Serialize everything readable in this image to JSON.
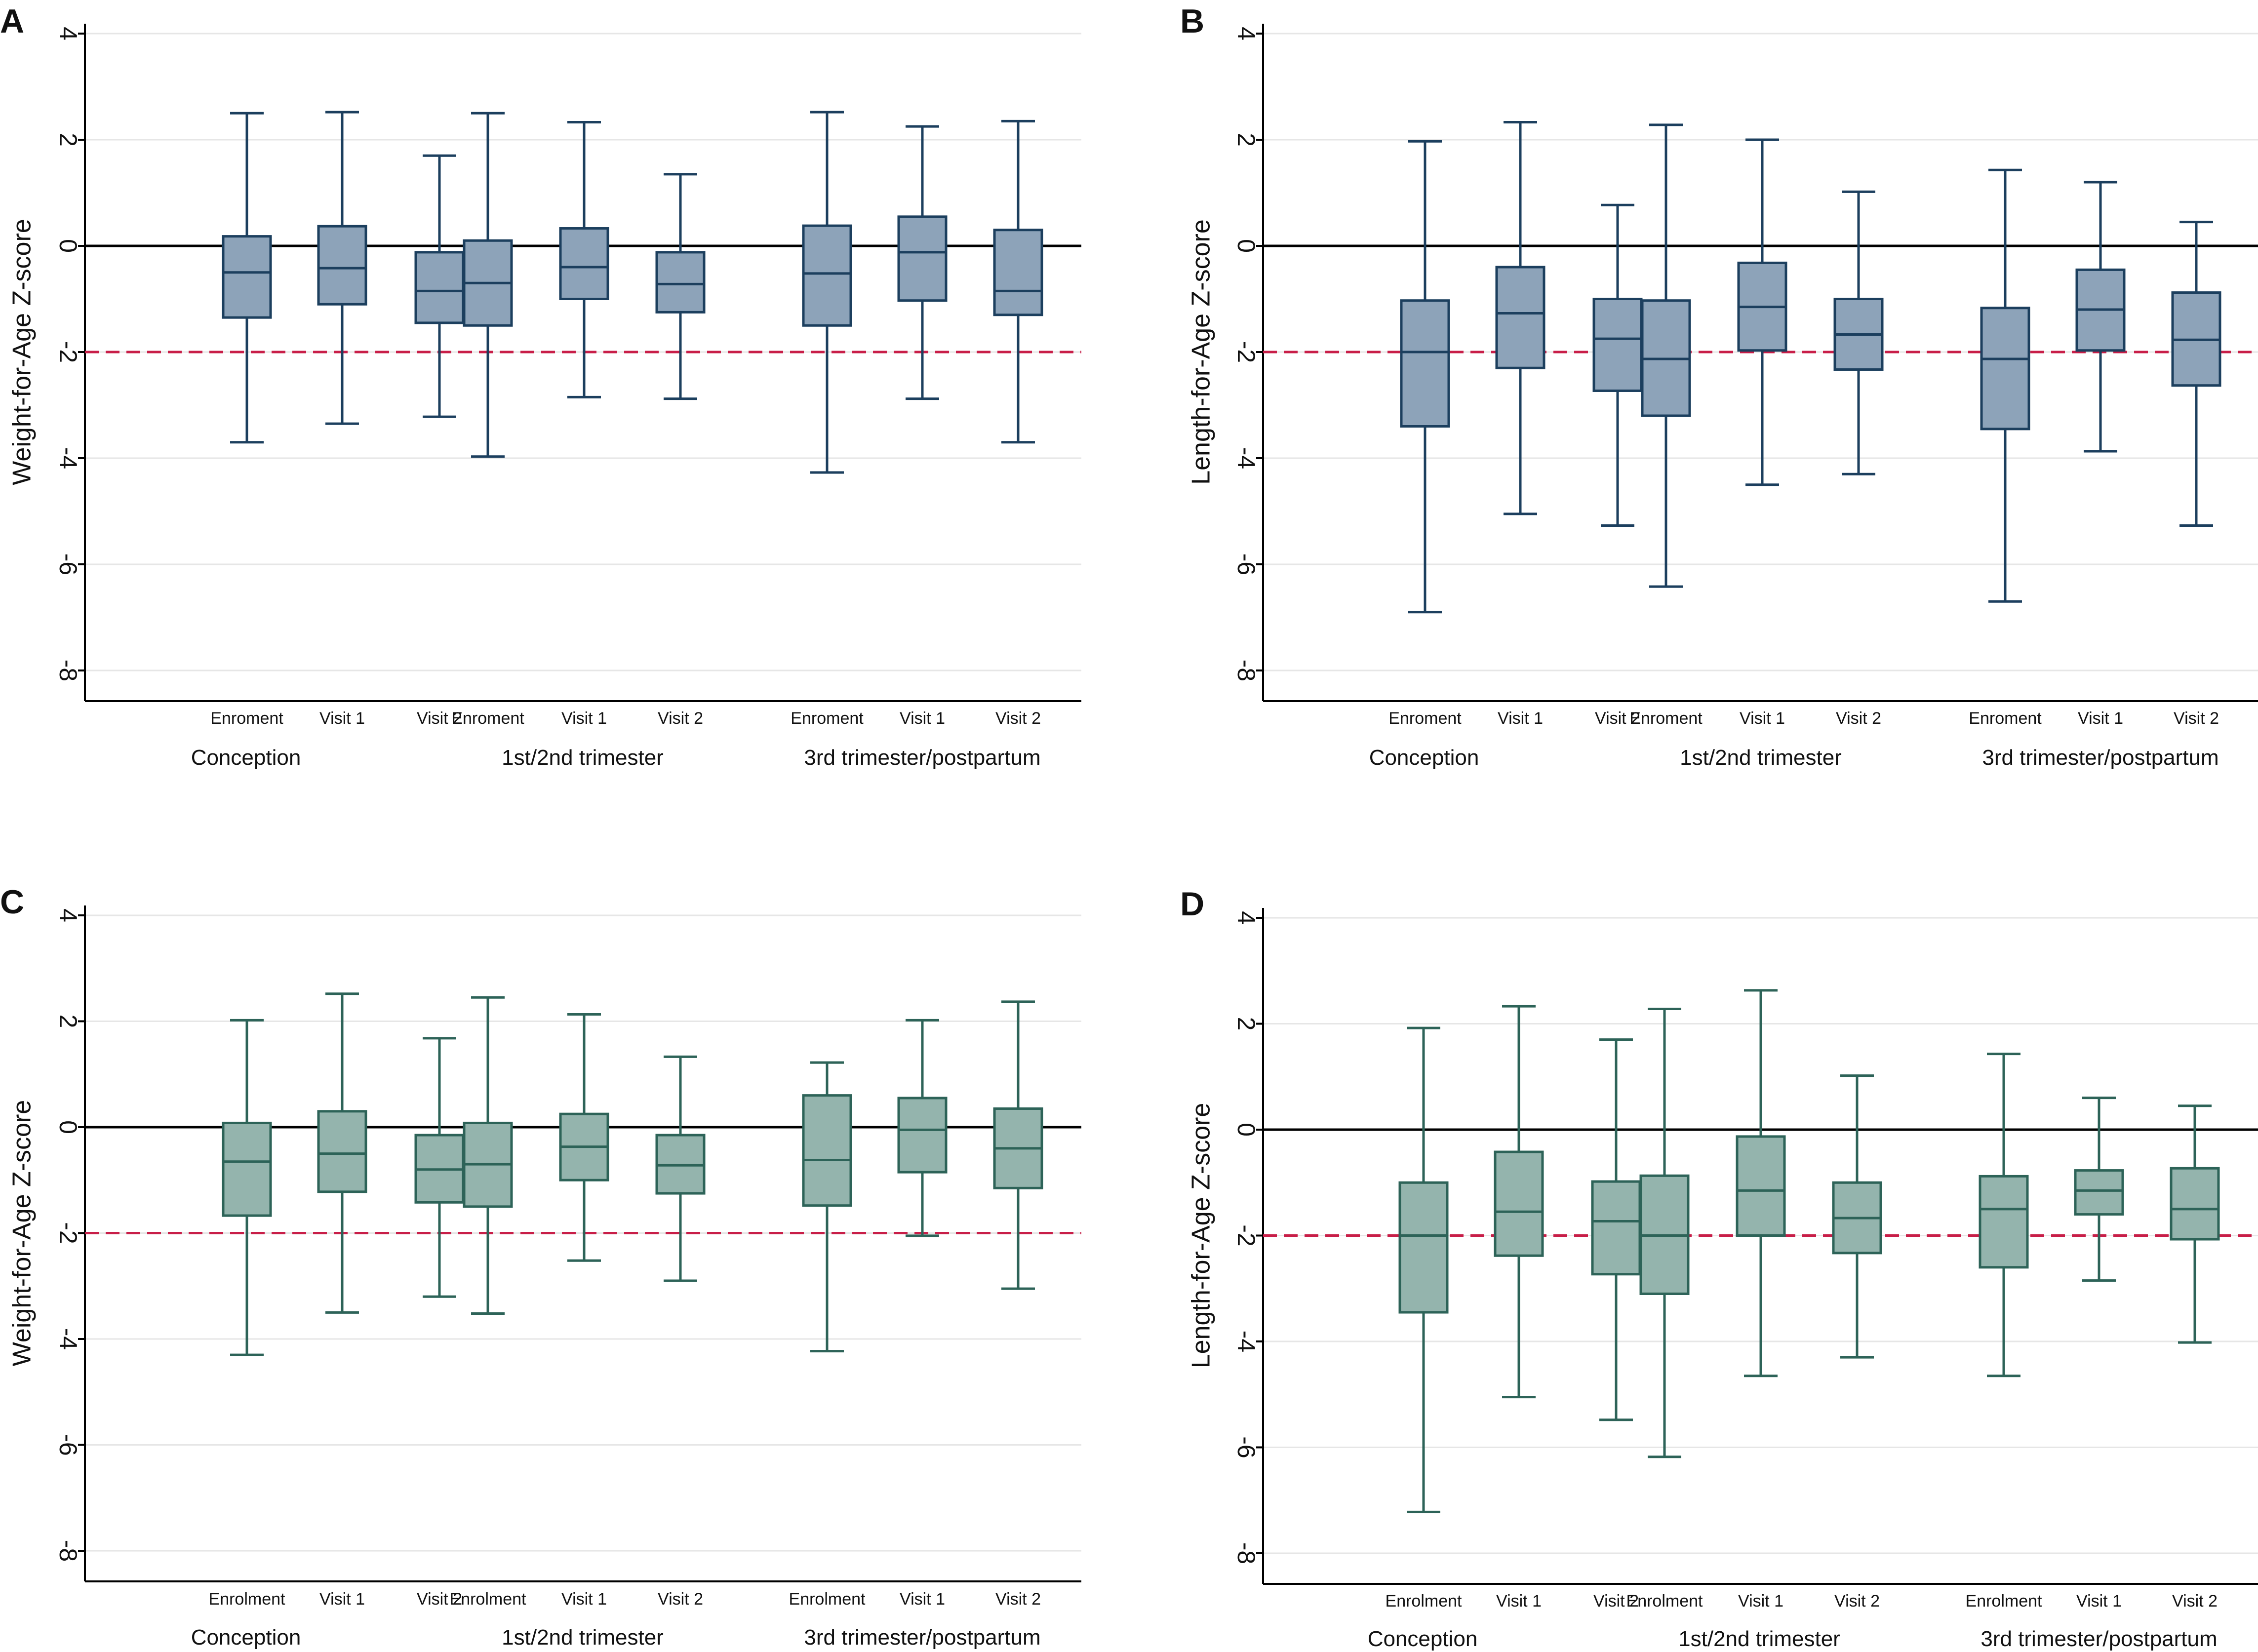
{
  "colors": {
    "blue_fill": "#8da3b9",
    "blue_line": "#1c3f5e",
    "green_fill": "#94b4ad",
    "green_line": "#2d6358",
    "reference_line": "#000000",
    "cutoff_line": "#c81e48",
    "gridline": "#e6e6e6"
  },
  "chart_data": [
    {
      "panel": "A",
      "type": "box",
      "ylabel": "Weight-for-Age Z-score",
      "ylim": [
        -8.5,
        4.5
      ],
      "yticks": [
        "4",
        "2",
        "0",
        "-2",
        "-4",
        "-6",
        "-8"
      ],
      "reference_line": 0,
      "cutoff_line": -2,
      "color_scheme": "blue",
      "groups": [
        {
          "label": "Conception",
          "boxes": [
            {
              "label": "Enroment",
              "min": -3.7,
              "q1": -1.35,
              "median": -0.5,
              "q3": 0.18,
              "max": 2.5
            },
            {
              "label": "Visit 1",
              "min": -3.35,
              "q1": -1.1,
              "median": -0.42,
              "q3": 0.37,
              "max": 2.52
            },
            {
              "label": "Visit 2",
              "min": -3.22,
              "q1": -1.45,
              "median": -0.85,
              "q3": -0.12,
              "max": 1.7
            }
          ]
        },
        {
          "label": "1st/2nd trimester",
          "boxes": [
            {
              "label": "Enroment",
              "min": -3.97,
              "q1": -1.5,
              "median": -0.7,
              "q3": 0.1,
              "max": 2.5
            },
            {
              "label": "Visit 1",
              "min": -2.85,
              "q1": -1.0,
              "median": -0.4,
              "q3": 0.33,
              "max": 2.33
            },
            {
              "label": "Visit 2",
              "min": -2.88,
              "q1": -1.25,
              "median": -0.72,
              "q3": -0.12,
              "max": 1.35
            }
          ]
        },
        {
          "label": "3rd trimester/postpartum",
          "boxes": [
            {
              "label": "Enroment",
              "min": -4.27,
              "q1": -1.5,
              "median": -0.52,
              "q3": 0.38,
              "max": 2.52
            },
            {
              "label": "Visit 1",
              "min": -2.88,
              "q1": -1.03,
              "median": -0.12,
              "q3": 0.55,
              "max": 2.25
            },
            {
              "label": "Visit 2",
              "min": -3.7,
              "q1": -1.3,
              "median": -0.85,
              "q3": 0.3,
              "max": 2.35
            }
          ]
        }
      ]
    },
    {
      "panel": "B",
      "type": "box",
      "ylabel": "Length-for-Age Z-score",
      "ylim": [
        -8.5,
        4.5
      ],
      "yticks": [
        "4",
        "2",
        "0",
        "-2",
        "-4",
        "-6",
        "-8"
      ],
      "reference_line": 0,
      "cutoff_line": -2,
      "color_scheme": "blue",
      "groups": [
        {
          "label": "Conception",
          "boxes": [
            {
              "label": "Enroment",
              "min": -6.9,
              "q1": -3.4,
              "median": -2.0,
              "q3": -1.03,
              "max": 1.97
            },
            {
              "label": "Visit 1",
              "min": -5.05,
              "q1": -2.3,
              "median": -1.27,
              "q3": -0.4,
              "max": 2.33
            },
            {
              "label": "Visit 2",
              "min": -5.27,
              "q1": -2.73,
              "median": -1.75,
              "q3": -1.0,
              "max": 0.77
            }
          ]
        },
        {
          "label": "1st/2nd trimester",
          "boxes": [
            {
              "label": "Enroment",
              "min": -6.42,
              "q1": -3.2,
              "median": -2.13,
              "q3": -1.03,
              "max": 2.28
            },
            {
              "label": "Visit 1",
              "min": -4.5,
              "q1": -1.97,
              "median": -1.15,
              "q3": -0.32,
              "max": 2.0
            },
            {
              "label": "Visit 2",
              "min": -4.3,
              "q1": -2.33,
              "median": -1.67,
              "q3": -1.0,
              "max": 1.02
            }
          ]
        },
        {
          "label": "3rd trimester/postpartum",
          "boxes": [
            {
              "label": "Enroment",
              "min": -6.7,
              "q1": -3.45,
              "median": -2.13,
              "q3": -1.17,
              "max": 1.43
            },
            {
              "label": "Visit 1",
              "min": -3.87,
              "q1": -1.97,
              "median": -1.2,
              "q3": -0.45,
              "max": 1.2
            },
            {
              "label": "Visit 2",
              "min": -5.27,
              "q1": -2.63,
              "median": -1.77,
              "q3": -0.88,
              "max": 0.45
            }
          ]
        }
      ]
    },
    {
      "panel": "C",
      "type": "box",
      "ylabel": "Weight-for-Age Z-score",
      "ylim": [
        -8.5,
        4.5
      ],
      "yticks": [
        "4",
        "2",
        "0",
        "-2",
        "-4",
        "-6",
        "-8"
      ],
      "reference_line": 0,
      "cutoff_line": -2,
      "color_scheme": "green",
      "groups": [
        {
          "label": "Conception",
          "boxes": [
            {
              "label": "Enrolment",
              "min": -4.3,
              "q1": -1.67,
              "median": -0.65,
              "q3": 0.08,
              "max": 2.02
            },
            {
              "label": "Visit 1",
              "min": -3.5,
              "q1": -1.22,
              "median": -0.5,
              "q3": 0.3,
              "max": 2.52
            },
            {
              "label": "Visit 2",
              "min": -3.2,
              "q1": -1.42,
              "median": -0.8,
              "q3": -0.15,
              "max": 1.68
            }
          ]
        },
        {
          "label": "1st/2nd trimester",
          "boxes": [
            {
              "label": "Enrolment",
              "min": -3.52,
              "q1": -1.5,
              "median": -0.7,
              "q3": 0.08,
              "max": 2.45
            },
            {
              "label": "Visit 1",
              "min": -2.52,
              "q1": -1.0,
              "median": -0.37,
              "q3": 0.25,
              "max": 2.13
            },
            {
              "label": "Visit 2",
              "min": -2.9,
              "q1": -1.25,
              "median": -0.72,
              "q3": -0.15,
              "max": 1.33
            }
          ]
        },
        {
          "label": "3rd trimester/postpartum",
          "boxes": [
            {
              "label": "Enrolment",
              "min": -4.23,
              "q1": -1.48,
              "median": -0.62,
              "q3": 0.6,
              "max": 1.22
            },
            {
              "label": "Visit 1",
              "min": -2.05,
              "q1": -0.85,
              "median": -0.05,
              "q3": 0.55,
              "max": 2.02
            },
            {
              "label": "Visit 2",
              "min": -3.05,
              "q1": -1.15,
              "median": -0.4,
              "q3": 0.35,
              "max": 2.37
            }
          ]
        }
      ]
    },
    {
      "panel": "D",
      "type": "box",
      "ylabel": "Length-for-Age Z-score",
      "ylim": [
        -8.5,
        4.5
      ],
      "yticks": [
        "4",
        "2",
        "0",
        "-2",
        "-4",
        "-6",
        "-8"
      ],
      "reference_line": 0,
      "cutoff_line": -2,
      "color_scheme": "green",
      "groups": [
        {
          "label": "Conception",
          "boxes": [
            {
              "label": "Enrolment",
              "min": -7.22,
              "q1": -3.45,
              "median": -2.0,
              "q3": -1.0,
              "max": 1.92
            },
            {
              "label": "Visit 1",
              "min": -5.05,
              "q1": -2.38,
              "median": -1.55,
              "q3": -0.42,
              "max": 2.33
            },
            {
              "label": "Visit 2",
              "min": -5.48,
              "q1": -2.73,
              "median": -1.73,
              "q3": -0.98,
              "max": 1.7
            }
          ]
        },
        {
          "label": "1st/2nd trimester",
          "boxes": [
            {
              "label": "Enrolment",
              "min": -6.18,
              "q1": -3.1,
              "median": -2.0,
              "q3": -0.87,
              "max": 2.28
            },
            {
              "label": "Visit 1",
              "min": -4.65,
              "q1": -2.0,
              "median": -1.15,
              "q3": -0.13,
              "max": 2.63
            },
            {
              "label": "Visit 2",
              "min": -4.3,
              "q1": -2.33,
              "median": -1.67,
              "q3": -1.0,
              "max": 1.02
            }
          ]
        },
        {
          "label": "3rd trimester/postpartum",
          "boxes": [
            {
              "label": "Enrolment",
              "min": -4.65,
              "q1": -2.6,
              "median": -1.5,
              "q3": -0.88,
              "max": 1.43
            },
            {
              "label": "Visit 1",
              "min": -2.85,
              "q1": -1.6,
              "median": -1.15,
              "q3": -0.77,
              "max": 0.6
            },
            {
              "label": "Visit 2",
              "min": -4.02,
              "q1": -2.07,
              "median": -1.5,
              "q3": -0.73,
              "max": 0.45
            }
          ]
        }
      ]
    }
  ]
}
